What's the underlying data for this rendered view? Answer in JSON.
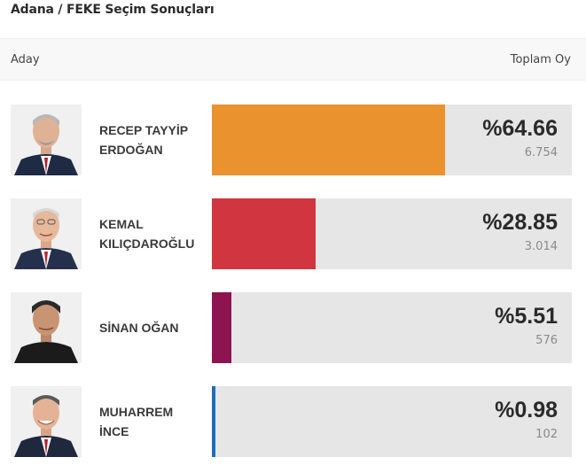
{
  "title": "Adana / FEKE Seçim Sonuçları",
  "header": {
    "candidate_label": "Aday",
    "total_label": "Toplam Oy"
  },
  "candidates": [
    {
      "name_line1": "RECEP TAYYİP",
      "name_line2": "ERDOĞAN",
      "percent": "%64.66",
      "percent_value": 64.66,
      "votes": "6.754",
      "color": "#ea922e"
    },
    {
      "name_line1": "KEMAL",
      "name_line2": "KILIÇDAROĞLU",
      "percent": "%28.85",
      "percent_value": 28.85,
      "votes": "3.014",
      "color": "#d1353f"
    },
    {
      "name_line1": "SİNAN OĞAN",
      "name_line2": "",
      "percent": "%5.51",
      "percent_value": 5.51,
      "votes": "576",
      "color": "#8d1450"
    },
    {
      "name_line1": "MUHARREM",
      "name_line2": "İNCE",
      "percent": "%0.98",
      "percent_value": 0.98,
      "votes": "102",
      "color": "#1d6eb6"
    }
  ]
}
